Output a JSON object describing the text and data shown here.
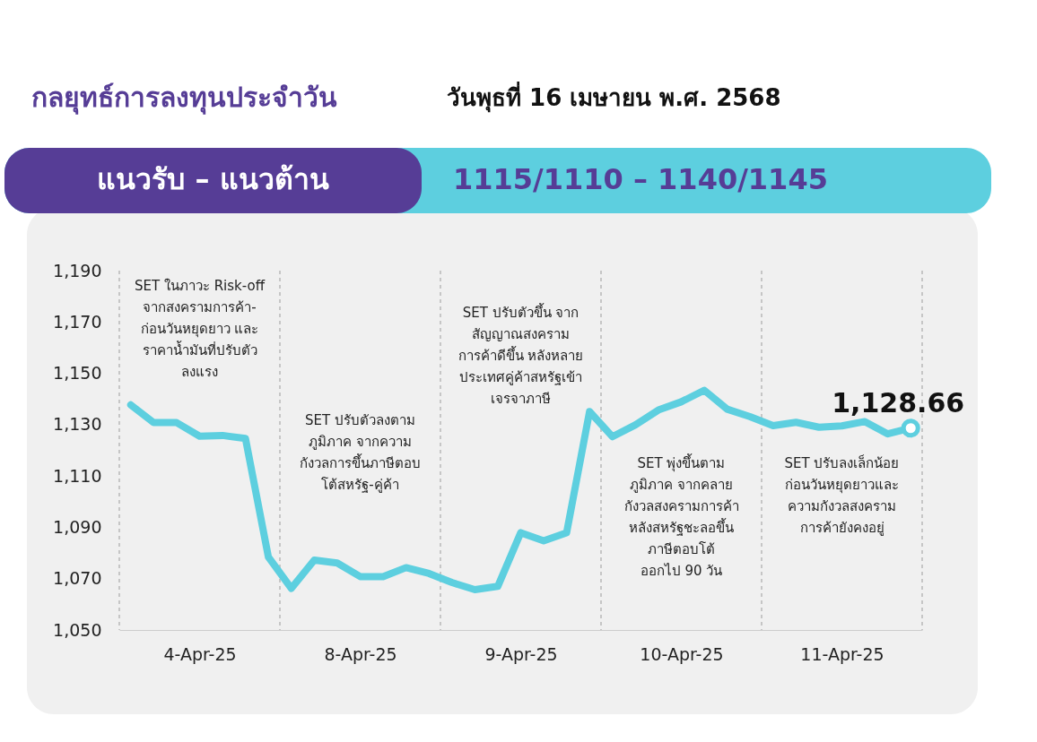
{
  "chart_data": {
    "type": "line",
    "title": "กลยุทธ์การลงทุนประจำวัน",
    "subtitle": "วันพุธที่ 16 เมษายน พ.ศ. 2568",
    "annotations": [
      "แนวรับ – แนวต้าน",
      "1115/1110 – 1140/1145",
      "SET ในภาวะ Risk-off\nจากสงครามการค้า-\nก่อนวันหยุดยาว และ\nราคาน้ำมันที่ปรับตัว\nลงแรง",
      "SET ปรับตัวลงตาม\nภูมิภาค จากความ\nกังวลการขึ้นภาษีตอบ\nโต้สหรัฐ-คู่ค้า",
      "SET ปรับตัวขึ้น จาก\nสัญญาณสงคราม\nการค้าดีขึ้น หลังหลาย\nประเทศคู่ค้าสหรัฐเข้า\nเจรจาภาษี",
      "SET พุ่งขึ้นตาม\nภูมิภาค จากคลาย\nกังวลสงครามการค้า\nหลังสหรัฐชะลอขึ้น\nภาษีตอบโต้\nออกไป 90 วัน",
      "SET ปรับลงเล็กน้อย\nก่อนวันหยุดยาวและ\nความกังวลสงคราม\nการค้ายังคงอยู่"
    ],
    "categories": [
      null,
      null,
      null,
      "4-Apr-25",
      null,
      null,
      null,
      null,
      null,
      null,
      "8-Apr-25",
      null,
      null,
      null,
      null,
      null,
      null,
      "9-Apr-25",
      null,
      null,
      null,
      null,
      null,
      null,
      "10-Apr-25",
      null,
      null,
      null,
      null,
      null,
      null,
      "11-Apr-25",
      null,
      null,
      null
    ],
    "series": [
      {
        "color": "#5dcfdf",
        "values": [
          1137.7,
          1130.8,
          1130.8,
          1125.5,
          1125.8,
          1124.6,
          1078.4,
          1066.2,
          1077.2,
          1076.1,
          1070.8,
          1070.8,
          1074.3,
          1072,
          1068.5,
          1065.7,
          1067.0,
          1087.9,
          1084.7,
          1087.9,
          1135.1,
          1125.3,
          1129.9,
          1135.7,
          1138.9,
          1143.4,
          1136.0,
          1133.1,
          1129.6,
          1130.9,
          1129.0,
          1129.5,
          1131.2,
          1126.4,
          1128.66
        ],
        "value_labels": [
          null,
          null,
          null,
          null,
          null,
          null,
          null,
          null,
          null,
          null,
          null,
          null,
          null,
          null,
          null,
          null,
          null,
          null,
          null,
          null,
          null,
          null,
          null,
          null,
          null,
          null,
          null,
          null,
          null,
          null,
          null,
          null,
          null,
          null,
          "1,128.66"
        ]
      }
    ],
    "ylim": [
      1050,
      1190
    ],
    "yticks": [
      {
        "value": 1050,
        "label": "1,050"
      },
      {
        "value": 1070,
        "label": "1,070"
      },
      {
        "value": 1090,
        "label": "1,090"
      },
      {
        "value": 1110,
        "label": "1,110"
      },
      {
        "value": 1130,
        "label": "1,130"
      },
      {
        "value": 1150,
        "label": "1,150"
      },
      {
        "value": 1170,
        "label": "1,170"
      },
      {
        "value": 1190,
        "label": "1,190"
      }
    ],
    "line_style": "solid"
  }
}
